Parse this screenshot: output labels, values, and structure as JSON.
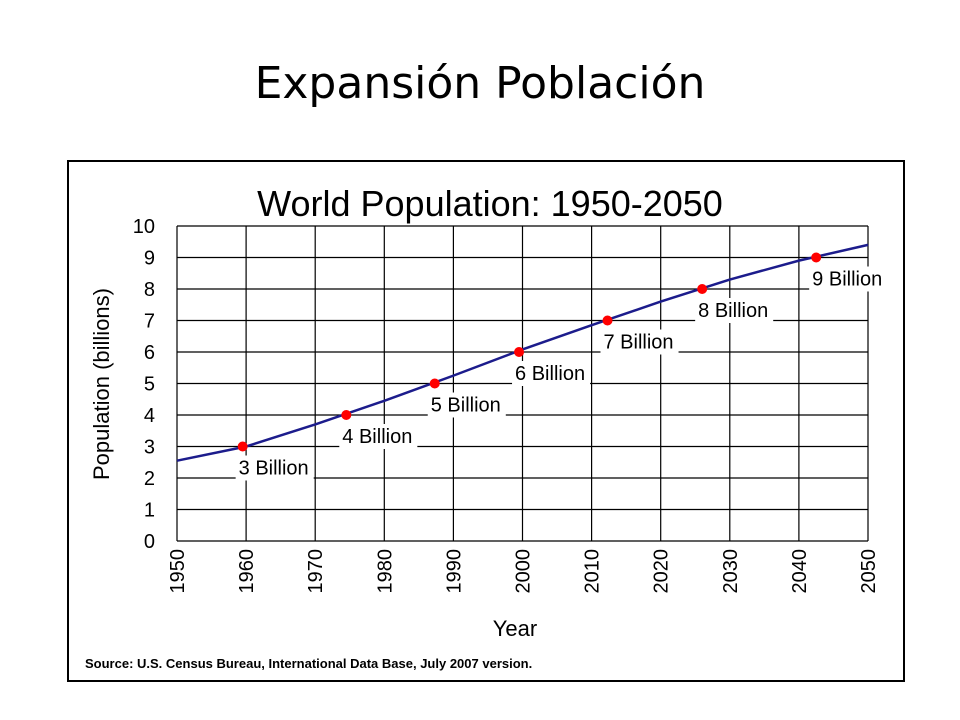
{
  "slide": {
    "title": "Expansión Población"
  },
  "chart_data": {
    "type": "line",
    "title": "World Population: 1950-2050",
    "xlabel": "Year",
    "ylabel": "Population (billions)",
    "xlim": [
      1950,
      2050
    ],
    "ylim": [
      0,
      10
    ],
    "x_ticks": [
      "1950",
      "1960",
      "1970",
      "1980",
      "1990",
      "2000",
      "2010",
      "2020",
      "2030",
      "2040",
      "2050"
    ],
    "y_ticks": [
      "0",
      "1",
      "2",
      "3",
      "4",
      "5",
      "6",
      "7",
      "8",
      "9",
      "10"
    ],
    "grid": true,
    "series": [
      {
        "x": [
          1950,
          1960,
          1970,
          1980,
          1990,
          2000,
          2010,
          2020,
          2030,
          2040,
          2050
        ],
        "y": [
          2.55,
          3.0,
          3.7,
          4.45,
          5.25,
          6.08,
          6.85,
          7.6,
          8.3,
          8.9,
          9.4
        ],
        "color": "#1c1c8c"
      }
    ],
    "milestones": [
      {
        "x": 1959.5,
        "y": 3,
        "label": "3 Billion"
      },
      {
        "x": 1974.5,
        "y": 4,
        "label": "4 Billion"
      },
      {
        "x": 1987.3,
        "y": 5,
        "label": "5 Billion"
      },
      {
        "x": 1999.5,
        "y": 6,
        "label": "6 Billion"
      },
      {
        "x": 2012.3,
        "y": 7,
        "label": "7 Billion"
      },
      {
        "x": 2026,
        "y": 8,
        "label": "8 Billion"
      },
      {
        "x": 2042.5,
        "y": 9,
        "label": "9 Billion"
      }
    ],
    "marker_color": "#ff0000",
    "source": "Source: U.S. Census Bureau, International Data Base, July 2007 version."
  }
}
